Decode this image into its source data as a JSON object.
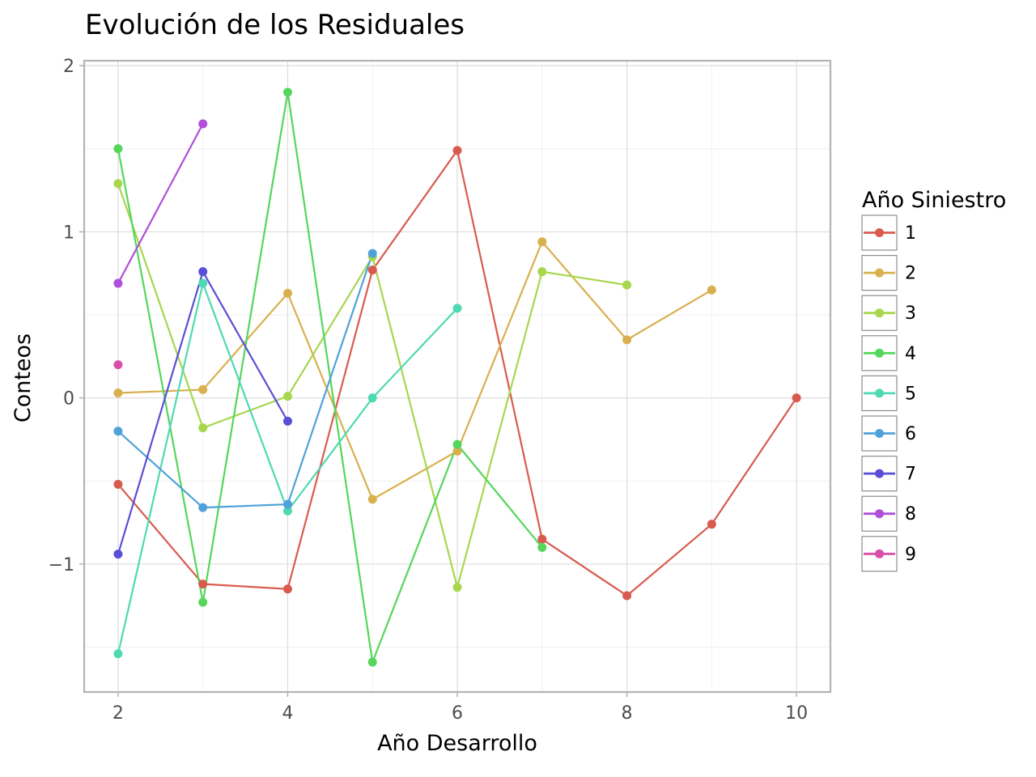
{
  "chart_data": {
    "type": "line",
    "title": "Evolución de los Residuales",
    "xlabel": "Año Desarrollo",
    "ylabel": "Conteos",
    "xlim": [
      1.6,
      10.4
    ],
    "ylim": [
      -1.77,
      2.03
    ],
    "x_ticks": [
      2,
      4,
      6,
      8,
      10
    ],
    "y_ticks": [
      -1,
      0,
      1,
      2
    ],
    "y_tick_labels": [
      "−1",
      "0",
      "1",
      "2"
    ],
    "grid": true,
    "legend": {
      "title": "Año Siniestro",
      "position": "right"
    },
    "series": [
      {
        "name": "1",
        "color": "#d95b4f",
        "points": [
          [
            2,
            -0.52
          ],
          [
            3,
            -1.12
          ],
          [
            4,
            -1.15
          ],
          [
            5,
            0.77
          ],
          [
            6,
            1.49
          ],
          [
            7,
            -0.85
          ],
          [
            8,
            -1.19
          ],
          [
            9,
            -0.76
          ],
          [
            10,
            0.0
          ]
        ]
      },
      {
        "name": "2",
        "color": "#d9b04f",
        "points": [
          [
            2,
            0.03
          ],
          [
            3,
            0.05
          ],
          [
            4,
            0.63
          ],
          [
            5,
            -0.61
          ],
          [
            6,
            -0.32
          ],
          [
            7,
            0.94
          ],
          [
            8,
            0.35
          ],
          [
            9,
            0.65
          ]
        ]
      },
      {
        "name": "3",
        "color": "#a8d64f",
        "points": [
          [
            2,
            1.29
          ],
          [
            3,
            -0.18
          ],
          [
            4,
            0.01
          ],
          [
            5,
            0.85
          ],
          [
            6,
            -1.14
          ],
          [
            7,
            0.76
          ],
          [
            8,
            0.68
          ]
        ]
      },
      {
        "name": "4",
        "color": "#55d65b",
        "points": [
          [
            2,
            1.5
          ],
          [
            3,
            -1.23
          ],
          [
            4,
            1.84
          ],
          [
            5,
            -1.59
          ],
          [
            6,
            -0.28
          ],
          [
            7,
            -0.9
          ]
        ]
      },
      {
        "name": "5",
        "color": "#4fd9b2",
        "points": [
          [
            2,
            -1.54
          ],
          [
            3,
            0.69
          ],
          [
            4,
            -0.68
          ],
          [
            5,
            0.0
          ],
          [
            6,
            0.54
          ]
        ]
      },
      {
        "name": "6",
        "color": "#4fa2d9",
        "points": [
          [
            2,
            -0.2
          ],
          [
            3,
            -0.66
          ],
          [
            4,
            -0.64
          ],
          [
            5,
            0.87
          ]
        ]
      },
      {
        "name": "7",
        "color": "#5a4fd6",
        "points": [
          [
            2,
            -0.94
          ],
          [
            3,
            0.76
          ],
          [
            4,
            -0.14
          ]
        ]
      },
      {
        "name": "8",
        "color": "#b04fd9",
        "points": [
          [
            2,
            0.69
          ],
          [
            3,
            1.65
          ]
        ]
      },
      {
        "name": "9",
        "color": "#d94fa8",
        "points": [
          [
            2,
            0.2
          ]
        ]
      }
    ]
  }
}
